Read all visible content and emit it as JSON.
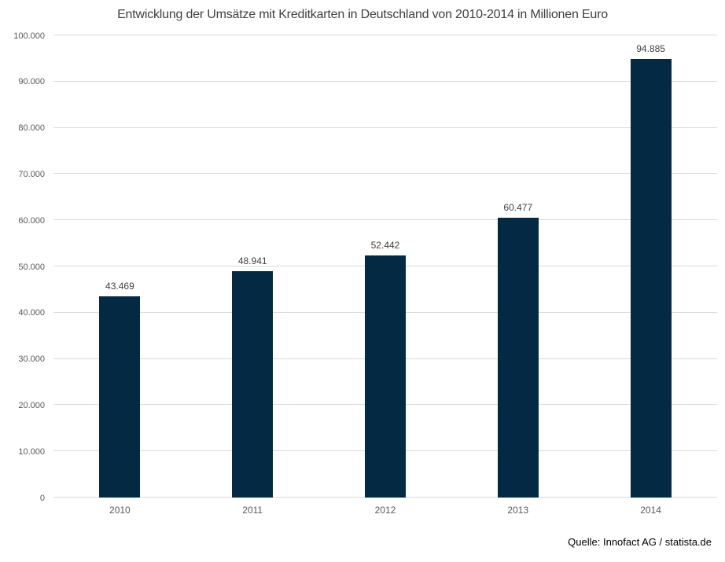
{
  "chart_data": {
    "type": "bar",
    "title": "Entwicklung der Umsätze mit Kreditkarten in Deutschland von 2010-2014 in Millionen Euro",
    "categories": [
      "2010",
      "2011",
      "2012",
      "2013",
      "2014"
    ],
    "values": [
      43469,
      48941,
      52442,
      60477,
      94885
    ],
    "value_labels": [
      "43.469",
      "48.941",
      "52.442",
      "60.477",
      "94.885"
    ],
    "xlabel": "",
    "ylabel": "",
    "ylim": [
      0,
      100000
    ],
    "y_tick_step": 10000,
    "y_tick_labels": [
      "0",
      "10.000",
      "20.000",
      "30.000",
      "40.000",
      "50.000",
      "60.000",
      "70.000",
      "80.000",
      "90.000",
      "100.000"
    ],
    "grid": true,
    "legend_position": "none",
    "colors": {
      "bar": "#032a42",
      "gridline": "#d9d9d9",
      "title_text": "#404040",
      "tick_text": "#595959",
      "value_label_text": "#404040"
    }
  },
  "footer": {
    "source": "Quelle: Innofact AG / statista.de"
  }
}
